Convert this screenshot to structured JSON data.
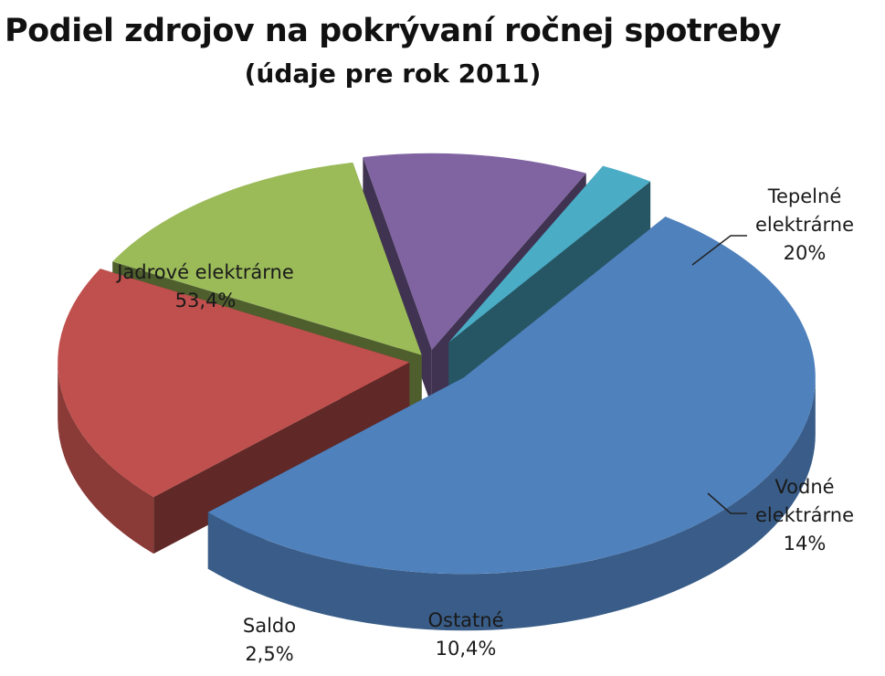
{
  "chart_data": {
    "type": "pie",
    "title": "Podiel zdrojov na pokrývaní ročnej spotreby",
    "subtitle": "(údaje pre rok 2011)",
    "slices": [
      {
        "label": "Jadrové elektrárne",
        "value": 53.4,
        "value_label": "53,4%",
        "color": "#4f81bd"
      },
      {
        "label": "Tepelné elektrárne",
        "value": 20,
        "value_label": "20%",
        "color": "#c0504d"
      },
      {
        "label": "Vodné elektrárne",
        "value": 14,
        "value_label": "14%",
        "color": "#9bbb59"
      },
      {
        "label": "Ostatné",
        "value": 10.4,
        "value_label": "10,4%",
        "color": "#8064a2"
      },
      {
        "label": "Saldo",
        "value": 2.5,
        "value_label": "2,5%",
        "color": "#4bacc6"
      }
    ],
    "style": "3d-exploded",
    "legend": "none"
  }
}
